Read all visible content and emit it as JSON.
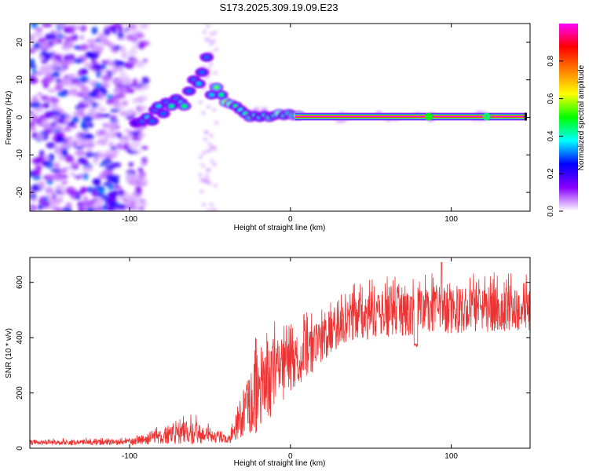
{
  "title": "S173.2025.309.19.09.E23",
  "chart_data": [
    {
      "type": "heatmap",
      "name": "spectrogram",
      "xlabel": "Height of straight line (km)",
      "ylabel": "Frequency (Hz)",
      "xlim": [
        -162,
        149
      ],
      "ylim": [
        -25,
        25
      ],
      "xticks": [
        -100,
        0,
        100
      ],
      "yticks": [
        -20,
        -10,
        0,
        10,
        20
      ],
      "xtick_labels": [
        "-100",
        "0",
        "100"
      ],
      "ytick_labels": [
        "-20",
        "-10",
        "0",
        "10",
        "20"
      ],
      "colorbar": {
        "label": "Normalized spectral amplitude",
        "range": [
          0,
          1
        ],
        "ticks": [
          0.0,
          0.2,
          0.4,
          0.6,
          0.8
        ],
        "tick_labels": [
          "0.0",
          "0.2",
          "0.4",
          "0.6",
          "0.8"
        ],
        "stops": [
          "#ffffff",
          "#8a00ff",
          "#0000ff",
          "#00ffff",
          "#00ff00",
          "#ffff00",
          "#ff8000",
          "#ff0000",
          "#ff00ff"
        ]
      },
      "meteor_track": [
        {
          "h": -96,
          "f": -1.5,
          "a": 0.25
        },
        {
          "h": -92,
          "f": -1,
          "a": 0.3
        },
        {
          "h": -89,
          "f": 0,
          "a": 0.35
        },
        {
          "h": -86,
          "f": -1,
          "a": 0.3
        },
        {
          "h": -84,
          "f": 2,
          "a": 0.3
        },
        {
          "h": -82,
          "f": 3,
          "a": 0.35
        },
        {
          "h": -79,
          "f": 1,
          "a": 0.3
        },
        {
          "h": -77,
          "f": 4,
          "a": 0.3
        },
        {
          "h": -74,
          "f": 3,
          "a": 0.45
        },
        {
          "h": -71,
          "f": 5,
          "a": 0.3
        },
        {
          "h": -68,
          "f": 4,
          "a": 0.35
        },
        {
          "h": -66,
          "f": 3,
          "a": 0.5
        },
        {
          "h": -63,
          "f": 7,
          "a": 0.3
        },
        {
          "h": -60,
          "f": 10,
          "a": 0.3
        },
        {
          "h": -57,
          "f": 9,
          "a": 0.35
        },
        {
          "h": -55,
          "f": 12,
          "a": 0.3
        },
        {
          "h": -52,
          "f": 16,
          "a": 0.3
        },
        {
          "h": -49,
          "f": 6,
          "a": 0.35
        },
        {
          "h": -46,
          "f": 8,
          "a": 0.55
        },
        {
          "h": -43,
          "f": 6,
          "a": 0.45
        },
        {
          "h": -40,
          "f": 4,
          "a": 0.7
        },
        {
          "h": -37,
          "f": 3.5,
          "a": 0.6
        },
        {
          "h": -34,
          "f": 3,
          "a": 0.45
        },
        {
          "h": -31,
          "f": 2,
          "a": 0.4
        },
        {
          "h": -28,
          "f": 1,
          "a": 0.45
        },
        {
          "h": -25,
          "f": 0,
          "a": 0.5
        },
        {
          "h": -22,
          "f": 0.5,
          "a": 0.45
        },
        {
          "h": -19,
          "f": 0,
          "a": 0.4
        },
        {
          "h": -16,
          "f": 0.5,
          "a": 0.45
        },
        {
          "h": -13,
          "f": 0,
          "a": 0.5
        },
        {
          "h": -10,
          "f": 0.5,
          "a": 0.45
        },
        {
          "h": -7,
          "f": 1,
          "a": 0.6
        },
        {
          "h": -4,
          "f": 0.5,
          "a": 0.45
        },
        {
          "h": -1,
          "f": 1,
          "a": 0.5
        },
        {
          "h": 2,
          "f": 0.5,
          "a": 0.55
        },
        {
          "h": 5,
          "f": 0.5,
          "a": 0.65
        }
      ],
      "steady_line": {
        "h_start": 3,
        "h_end": 147,
        "f": 0.2,
        "a": 1.0
      }
    },
    {
      "type": "line",
      "name": "snr",
      "xlabel": "Height of straight line (km)",
      "ylabel": "SNR (10 * v/v)",
      "xlim": [
        -162,
        149
      ],
      "ylim": [
        0,
        690
      ],
      "xticks": [
        -100,
        0,
        100
      ],
      "yticks": [
        0,
        200,
        400,
        600
      ],
      "xtick_labels": [
        "-100",
        "0",
        "100"
      ],
      "ytick_labels": [
        "0",
        "200",
        "400",
        "600"
      ],
      "color": "#ee3333",
      "envelope": [
        {
          "h": -162,
          "mean": 20,
          "spread": 18
        },
        {
          "h": -100,
          "mean": 22,
          "spread": 20
        },
        {
          "h": -80,
          "mean": 40,
          "spread": 60
        },
        {
          "h": -60,
          "mean": 55,
          "spread": 90
        },
        {
          "h": -48,
          "mean": 40,
          "spread": 40
        },
        {
          "h": -38,
          "mean": 30,
          "spread": 25
        },
        {
          "h": -34,
          "mean": 70,
          "spread": 80
        },
        {
          "h": -30,
          "mean": 120,
          "spread": 170
        },
        {
          "h": -22,
          "mean": 170,
          "spread": 260
        },
        {
          "h": -12,
          "mean": 240,
          "spread": 250
        },
        {
          "h": 0,
          "mean": 300,
          "spread": 200
        },
        {
          "h": 15,
          "mean": 360,
          "spread": 170
        },
        {
          "h": 25,
          "mean": 420,
          "spread": 160
        },
        {
          "h": 35,
          "mean": 460,
          "spread": 150
        },
        {
          "h": 60,
          "mean": 480,
          "spread": 160
        },
        {
          "h": 90,
          "mean": 500,
          "spread": 170
        },
        {
          "h": 120,
          "mean": 495,
          "spread": 160
        },
        {
          "h": 149,
          "mean": 500,
          "spread": 150
        }
      ],
      "peak": {
        "h": 94,
        "snr": 672
      },
      "dip": {
        "h": 78,
        "snr": 355
      }
    }
  ]
}
